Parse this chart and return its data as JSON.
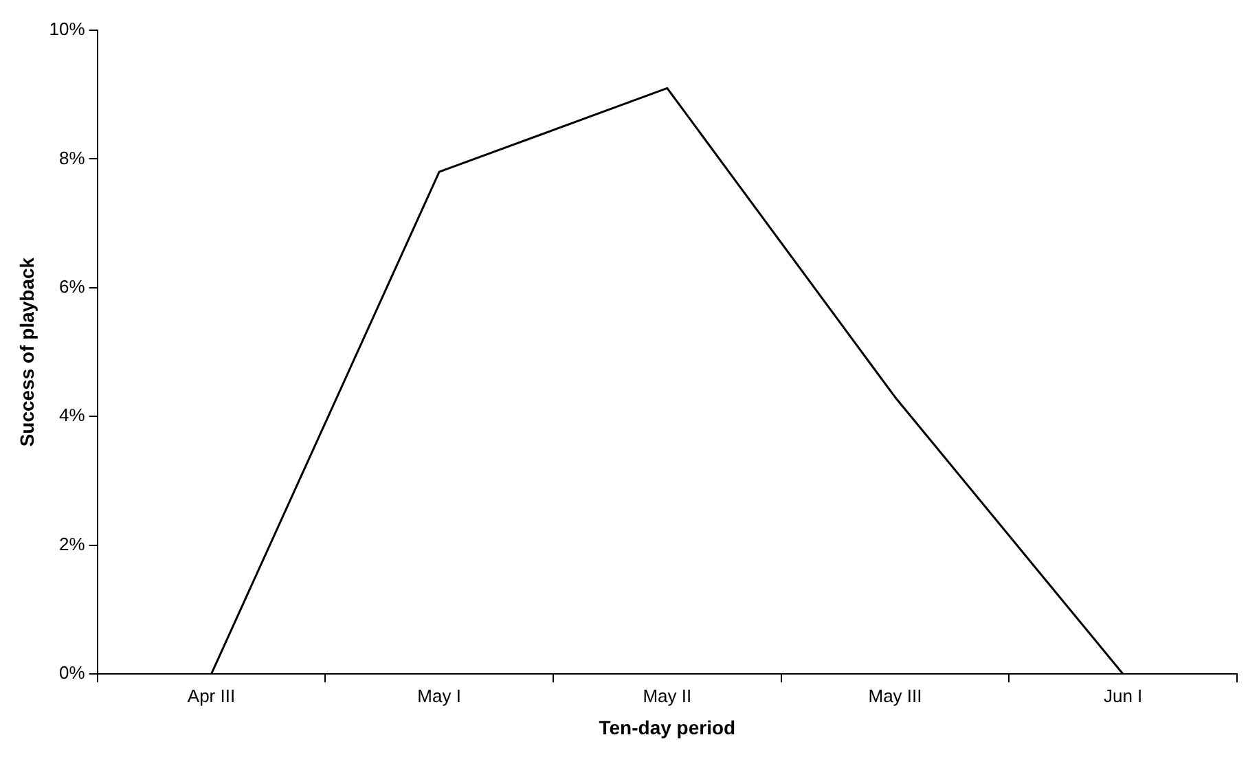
{
  "chart_data": {
    "type": "line",
    "xlabel": "Ten-day period",
    "ylabel": "Success of playback",
    "categories": [
      "Apr III",
      "May I",
      "May II",
      "May III",
      "Jun I"
    ],
    "series": [
      {
        "color": "#000000",
        "values": [
          0,
          7.8,
          9.1,
          4.3,
          0
        ]
      }
    ],
    "ylim": [
      0,
      10
    ],
    "yticks": [
      {
        "value": 0,
        "label": "0%"
      },
      {
        "value": 2,
        "label": "2%"
      },
      {
        "value": 4,
        "label": "4%"
      },
      {
        "value": 6,
        "label": "6%"
      },
      {
        "value": 8,
        "label": "8%"
      },
      {
        "value": 10,
        "label": "10%"
      }
    ],
    "grid": false,
    "marker": "none",
    "line_style": "solid"
  }
}
